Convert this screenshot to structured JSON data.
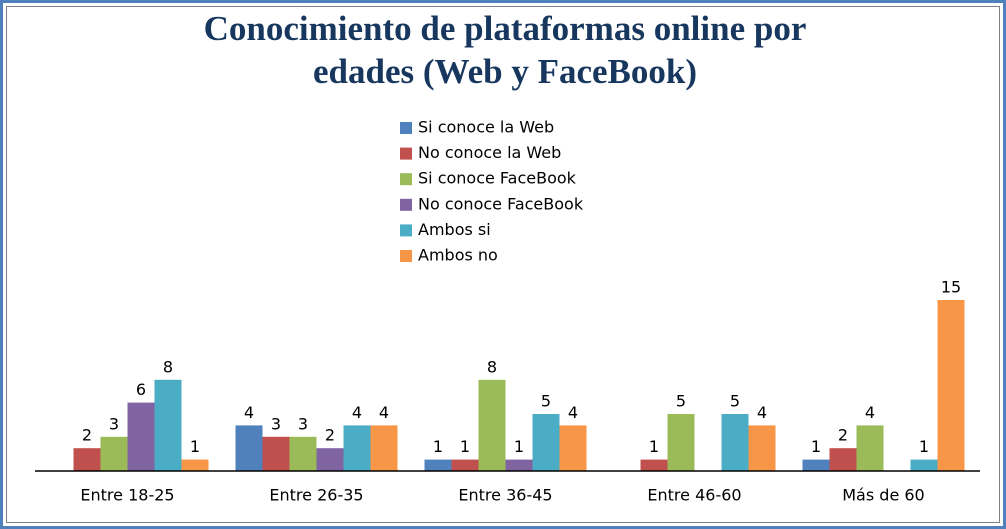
{
  "chart_data": {
    "type": "bar",
    "title": "Conocimiento de plataformas online por",
    "subtitle": "edades (Web y FaceBook)",
    "categories": [
      "Entre 18-25",
      "Entre 26-35",
      "Entre 36-45",
      "Entre 46-60",
      "Más de 60"
    ],
    "series": [
      {
        "name": "Si conoce la Web",
        "color": "#4f81bd",
        "values": [
          null,
          4,
          1,
          null,
          1
        ]
      },
      {
        "name": "No conoce la Web",
        "color": "#c0504d",
        "values": [
          2,
          3,
          1,
          1,
          2
        ]
      },
      {
        "name": "Si conoce FaceBook",
        "color": "#9bbb59",
        "values": [
          3,
          3,
          8,
          5,
          4
        ]
      },
      {
        "name": "No conoce FaceBook",
        "color": "#8064a2",
        "values": [
          6,
          2,
          1,
          null,
          null
        ]
      },
      {
        "name": "Ambos si",
        "color": "#4bacc6",
        "values": [
          8,
          4,
          5,
          5,
          1
        ]
      },
      {
        "name": "Ambos no",
        "color": "#f79646",
        "values": [
          1,
          4,
          4,
          4,
          15
        ]
      }
    ]
  }
}
